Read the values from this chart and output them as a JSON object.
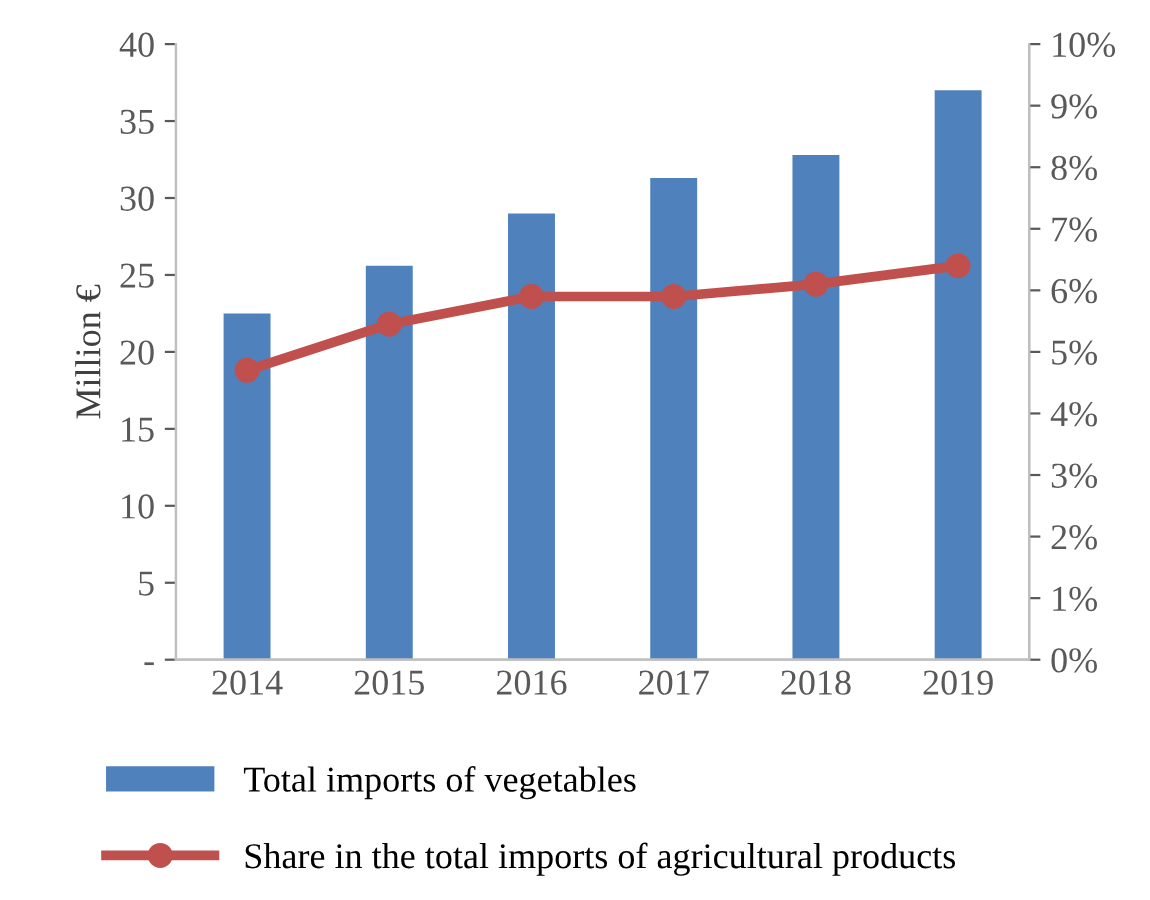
{
  "chart_data": {
    "type": "bar",
    "ylabel": "Million €",
    "categories": [
      "2014",
      "2015",
      "2016",
      "2017",
      "2018",
      "2019"
    ],
    "series": [
      {
        "name": "Total imports of vegetables",
        "color": "#4f81bd",
        "values": [
          22.5,
          25.6,
          29.0,
          31.3,
          32.8,
          37.0
        ]
      },
      {
        "name": "Share in the total imports of agricultural products",
        "type": "line",
        "axis": "y2",
        "color": "#c0504d",
        "values": [
          4.7,
          5.45,
          5.9,
          5.9,
          6.1,
          6.4
        ]
      }
    ],
    "ylim": [
      0,
      40
    ],
    "yticks": [
      {
        "value": 0,
        "label": "-"
      },
      5,
      10,
      15,
      20,
      25,
      30,
      35,
      40
    ],
    "y2lim": [
      0,
      10
    ],
    "y2ticks": [
      {
        "value": 0,
        "label": "0%"
      },
      {
        "value": 1,
        "label": "1%"
      },
      {
        "value": 2,
        "label": "2%"
      },
      {
        "value": 3,
        "label": "3%"
      },
      {
        "value": 4,
        "label": "4%"
      },
      {
        "value": 5,
        "label": "5%"
      },
      {
        "value": 6,
        "label": "6%"
      },
      {
        "value": 7,
        "label": "7%"
      },
      {
        "value": 8,
        "label": "8%"
      },
      {
        "value": 9,
        "label": "9%"
      },
      {
        "value": 10,
        "label": "10%"
      }
    ],
    "marker": "circle",
    "legend": "bottom",
    "grid": false
  }
}
